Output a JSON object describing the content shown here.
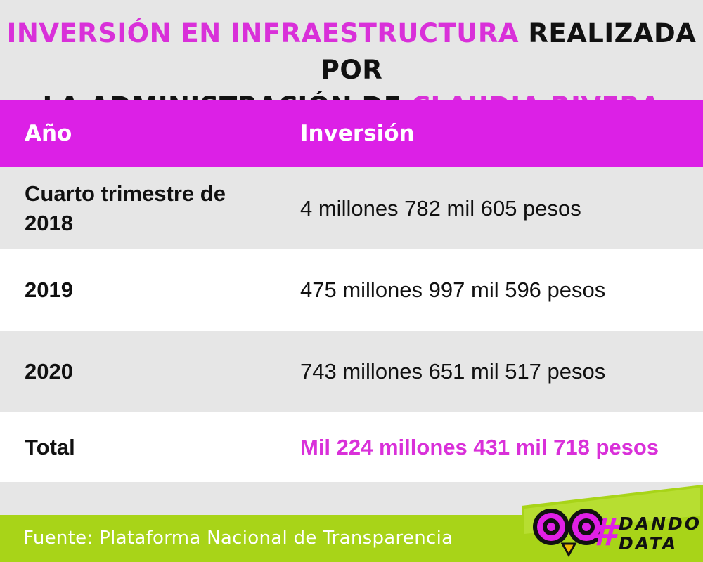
{
  "title": {
    "part1": "INVERSIÓN EN INFRAESTRUCTURA",
    "part2": " REALIZADA POR",
    "part3": "LA ADMINISTRACIÓN DE ",
    "part4": "CLAUDIA RIVERA"
  },
  "table": {
    "headers": {
      "year": "Año",
      "investment": "Inversión"
    },
    "rows": [
      {
        "year": "Cuarto trimestre de 2018",
        "investment": "4 millones 782 mil 605 pesos"
      },
      {
        "year": "2019",
        "investment": "475 millones 997 mil 596 pesos"
      },
      {
        "year": "2020",
        "investment": "743 millones 651 mil 517 pesos"
      },
      {
        "year": "Total",
        "investment": "Mil 224 millones 431 mil 718 pesos"
      }
    ]
  },
  "footer": {
    "source": "Fuente: Plataforma Nacional de Transparencia"
  },
  "logo": {
    "hash": "#",
    "word1": "DANDO",
    "word2": "DATA"
  },
  "colors": {
    "accent": "#dc20e6",
    "footer": "#a8d418",
    "highlight": "#d930d9"
  }
}
